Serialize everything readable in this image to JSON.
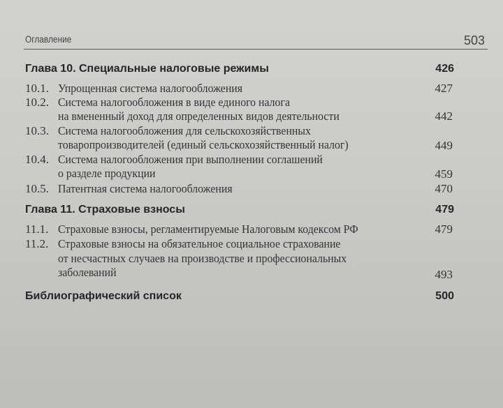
{
  "header": {
    "running_title": "Оглавление",
    "page_number": "503"
  },
  "chapters": [
    {
      "title": "Глава 10. Специальные налоговые режимы",
      "page": "426",
      "sections": [
        {
          "num": "10.1.",
          "lines": [
            "Упрощенная система налогообложения"
          ],
          "page": "427"
        },
        {
          "num": "10.2.",
          "lines": [
            "Система налогообложения в виде единого налога",
            "на вмененный доход для определенных видов деятельности"
          ],
          "page": "442"
        },
        {
          "num": "10.3.",
          "lines": [
            "Система налогообложения для сельскохозяйственных",
            "товаропроизводителей (единый сельскохозяйственный налог)"
          ],
          "page": "449"
        },
        {
          "num": "10.4.",
          "lines": [
            "Система налогообложения при выполнении соглашений",
            "о разделе продукции"
          ],
          "page": "459"
        },
        {
          "num": "10.5.",
          "lines": [
            "Патентная система налогообложения"
          ],
          "page": "470"
        }
      ]
    },
    {
      "title": "Глава 11. Страховые взносы",
      "page": "479",
      "sections": [
        {
          "num": "11.1.",
          "lines": [
            "Страховые взносы, регламентируемые Налоговым кодексом РФ"
          ],
          "page": "479"
        },
        {
          "num": "11.2.",
          "lines": [
            "Страховые взносы на обязательное социальное страхование",
            "от несчастных случаев на производстве и профессиональных",
            "заболеваний"
          ],
          "page": "493"
        }
      ]
    }
  ],
  "bibliography": {
    "title": "Библиографический список",
    "page": "500"
  }
}
